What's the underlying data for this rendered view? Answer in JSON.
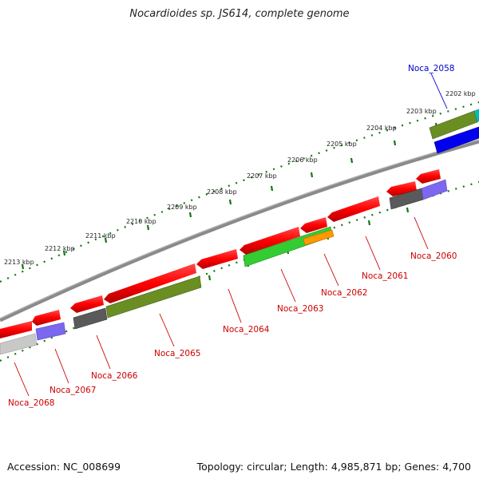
{
  "title": "Nocardioides sp. JS614, complete genome",
  "footer": {
    "accession": "Accession: NC_008699",
    "summary": "Topology: circular; Length: 4,985,871 bp; Genes: 4,700"
  },
  "scale": {
    "tick_labels": [
      "2202 kbp",
      "2203 kbp",
      "2204 kbp",
      "2205 kbp",
      "2206 kbp",
      "2207 kbp",
      "2208 kbp",
      "2209 kbp",
      "2210 kbp",
      "2211 kbp",
      "2212 kbp",
      "2213 kbp"
    ]
  },
  "genes": [
    {
      "label": "Noca_2058",
      "color": "#0000cc"
    },
    {
      "label": "Noca_2060",
      "color": "#cc0000"
    },
    {
      "label": "Noca_2061",
      "color": "#cc0000"
    },
    {
      "label": "Noca_2062",
      "color": "#cc0000"
    },
    {
      "label": "Noca_2063",
      "color": "#cc0000"
    },
    {
      "label": "Noca_2064",
      "color": "#cc0000"
    },
    {
      "label": "Noca_2065",
      "color": "#cc0000"
    },
    {
      "label": "Noca_2066",
      "color": "#cc0000"
    },
    {
      "label": "Noca_2067",
      "color": "#cc0000"
    },
    {
      "label": "Noca_2068",
      "color": "#cc0000"
    }
  ],
  "colors": {
    "backbone": "#808080",
    "cds_red": "#ff0000",
    "olive": "#6b8e23",
    "green": "#33cc33",
    "orange": "#ff9900",
    "blue": "#0000ff",
    "teal": "#00c0c0",
    "purple": "#7b68ee",
    "gray_dark": "#555555",
    "gray_light": "#c8c8c8",
    "tick_green": "#117711"
  }
}
